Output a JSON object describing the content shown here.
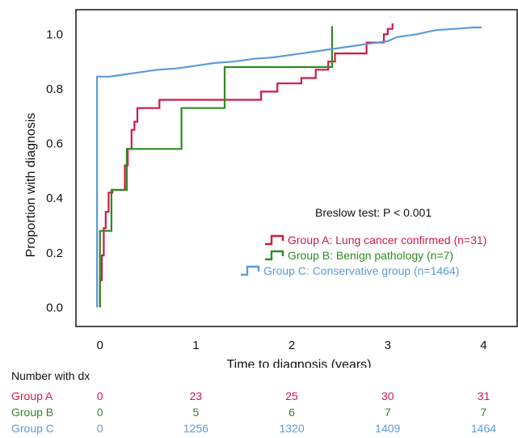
{
  "chart_data": {
    "type": "line",
    "step": true,
    "xlabel": "Time to diagnosis (years)",
    "ylabel": "Proportion with diagnosis",
    "xlim": [
      -0.25,
      4.35
    ],
    "ylim": [
      -0.07,
      1.09
    ],
    "xticks": [
      0,
      1,
      2,
      3,
      4
    ],
    "yticks": [
      "0.0",
      "0.2",
      "0.4",
      "0.6",
      "0.8",
      "1.0"
    ],
    "grid": false,
    "legend_position": "lower-right",
    "annotation": "Breslow test: P < 0.001",
    "series": [
      {
        "name": "Group A: Lung cancer confirmed (n=31)",
        "color": "#d3174a",
        "points": [
          [
            0,
            0
          ],
          [
            0,
            0.1
          ],
          [
            0.02,
            0.1
          ],
          [
            0.02,
            0.19
          ],
          [
            0.04,
            0.19
          ],
          [
            0.04,
            0.29
          ],
          [
            0.06,
            0.29
          ],
          [
            0.06,
            0.35
          ],
          [
            0.09,
            0.35
          ],
          [
            0.09,
            0.42
          ],
          [
            0.13,
            0.42
          ],
          [
            0.13,
            0.43
          ],
          [
            0.26,
            0.43
          ],
          [
            0.26,
            0.52
          ],
          [
            0.29,
            0.52
          ],
          [
            0.29,
            0.58
          ],
          [
            0.33,
            0.58
          ],
          [
            0.33,
            0.65
          ],
          [
            0.36,
            0.65
          ],
          [
            0.36,
            0.68
          ],
          [
            0.39,
            0.68
          ],
          [
            0.39,
            0.73
          ],
          [
            0.62,
            0.73
          ],
          [
            0.62,
            0.76
          ],
          [
            1.68,
            0.76
          ],
          [
            1.68,
            0.79
          ],
          [
            1.85,
            0.79
          ],
          [
            1.85,
            0.82
          ],
          [
            2.1,
            0.82
          ],
          [
            2.1,
            0.84
          ],
          [
            2.25,
            0.84
          ],
          [
            2.25,
            0.87
          ],
          [
            2.38,
            0.87
          ],
          [
            2.38,
            0.9
          ],
          [
            2.45,
            0.9
          ],
          [
            2.45,
            0.93
          ],
          [
            2.78,
            0.93
          ],
          [
            2.78,
            0.97
          ],
          [
            2.96,
            0.97
          ],
          [
            2.96,
            1.0
          ],
          [
            3.0,
            1.0
          ],
          [
            3.0,
            1.02
          ],
          [
            3.05,
            1.02
          ],
          [
            3.05,
            1.04
          ]
        ]
      },
      {
        "name": "Group B: Benign pathology (n=7)",
        "color": "#2e8b22",
        "points": [
          [
            0,
            0
          ],
          [
            0,
            0.28
          ],
          [
            0.12,
            0.28
          ],
          [
            0.12,
            0.43
          ],
          [
            0.28,
            0.43
          ],
          [
            0.28,
            0.58
          ],
          [
            0.85,
            0.58
          ],
          [
            0.85,
            0.73
          ],
          [
            1.3,
            0.73
          ],
          [
            1.3,
            0.88
          ],
          [
            2.42,
            0.88
          ],
          [
            2.42,
            1.03
          ]
        ]
      },
      {
        "name": "Group C: Conservative group (n=1464)",
        "color": "#5b9bd8",
        "points": [
          [
            -0.03,
            0
          ],
          [
            -0.03,
            0.845
          ],
          [
            0.1,
            0.845
          ],
          [
            0.2,
            0.85
          ],
          [
            0.4,
            0.86
          ],
          [
            0.6,
            0.87
          ],
          [
            0.8,
            0.875
          ],
          [
            1.0,
            0.885
          ],
          [
            1.2,
            0.895
          ],
          [
            1.4,
            0.9
          ],
          [
            1.6,
            0.91
          ],
          [
            1.8,
            0.915
          ],
          [
            2.0,
            0.925
          ],
          [
            2.2,
            0.935
          ],
          [
            2.4,
            0.945
          ],
          [
            2.6,
            0.955
          ],
          [
            2.8,
            0.965
          ],
          [
            3.0,
            0.975
          ],
          [
            3.1,
            0.99
          ],
          [
            3.3,
            1.0
          ],
          [
            3.5,
            1.015
          ],
          [
            3.7,
            1.02
          ],
          [
            3.9,
            1.025
          ],
          [
            3.98,
            1.025
          ]
        ]
      }
    ]
  },
  "risk_table": {
    "title": "Number with dx",
    "times": [
      0,
      1,
      2,
      3,
      4
    ],
    "rows": [
      {
        "name": "Group A",
        "color": "#d3174a",
        "values": [
          "0",
          "23",
          "25",
          "30",
          "31"
        ]
      },
      {
        "name": "Group B",
        "color": "#2e8b22",
        "values": [
          "0",
          "5",
          "6",
          "7",
          "7"
        ]
      },
      {
        "name": "Group C",
        "color": "#5b9bd8",
        "values": [
          "0",
          "1256",
          "1320",
          "1409",
          "1464"
        ]
      }
    ]
  }
}
